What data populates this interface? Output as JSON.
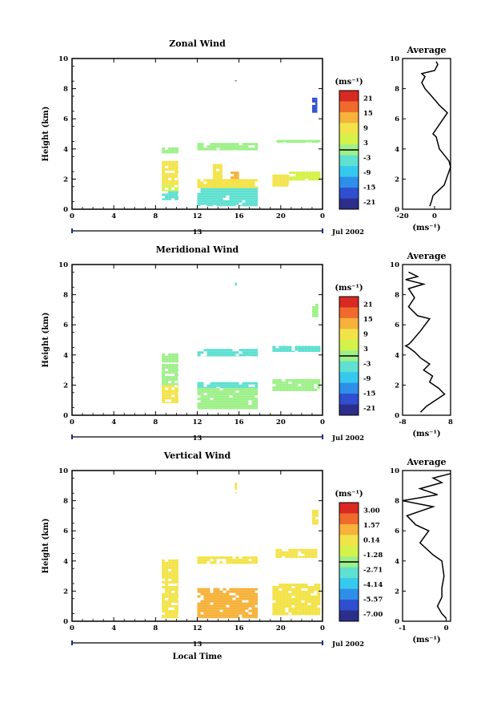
{
  "chart_data": [
    {
      "type": "heatmap",
      "title": "Zonal Wind",
      "ylabel": "Height (km)",
      "xlabel": "",
      "date_label": "Jul 2002",
      "date_day": "13",
      "x_ticks": [
        "0",
        "4",
        "8",
        "12",
        "16",
        "20",
        "0"
      ],
      "y_ticks": [
        "0",
        "2",
        "4",
        "6",
        "8",
        "10"
      ],
      "xlim": [
        0,
        24
      ],
      "ylim": [
        0,
        10
      ],
      "colorbar": {
        "unit": "(ms⁻¹)",
        "ticks": [
          "21",
          "15",
          "9",
          "3",
          "-3",
          "-9",
          "-15",
          "-21"
        ],
        "range": [
          -24,
          24
        ]
      },
      "blocks": [
        {
          "x": [
            8.6,
            10.2
          ],
          "y": [
            3.7,
            4.1
          ],
          "v": 2
        },
        {
          "x": [
            8.6,
            10.2
          ],
          "y": [
            1.6,
            3.2
          ],
          "v": 9
        },
        {
          "x": [
            8.6,
            10.2
          ],
          "y": [
            1.2,
            1.6
          ],
          "v": 6
        },
        {
          "x": [
            8.6,
            10.2
          ],
          "y": [
            0.6,
            1.2
          ],
          "v": -6
        },
        {
          "x": [
            12,
            17.8
          ],
          "y": [
            3.9,
            4.4
          ],
          "v": 1
        },
        {
          "x": [
            13.5,
            14.4
          ],
          "y": [
            1.4,
            3.0
          ],
          "v": 9
        },
        {
          "x": [
            15.2,
            16.0
          ],
          "y": [
            1.8,
            2.5
          ],
          "v": 12
        },
        {
          "x": [
            12,
            17.8
          ],
          "y": [
            1.4,
            2.0
          ],
          "v": 8
        },
        {
          "x": [
            12,
            17.8
          ],
          "y": [
            0.2,
            1.4
          ],
          "v": -6
        },
        {
          "x": [
            19.2,
            20.8
          ],
          "y": [
            1.5,
            2.3
          ],
          "v": 7
        },
        {
          "x": [
            20.8,
            23.8
          ],
          "y": [
            1.9,
            2.5
          ],
          "v": 4
        },
        {
          "x": [
            19.6,
            23.8
          ],
          "y": [
            4.4,
            4.6
          ],
          "v": 1
        },
        {
          "x": [
            23.0,
            23.5
          ],
          "y": [
            6.4,
            7.4
          ],
          "v": -18
        },
        {
          "x": [
            15.6,
            15.8
          ],
          "y": [
            8.5,
            8.7
          ],
          "v": -20
        }
      ],
      "average": {
        "xlim": [
          -20,
          10
        ],
        "x_ticks": [
          "-20",
          "0"
        ],
        "ylabel": "",
        "xlabel": "(ms⁻¹)",
        "title": "Average",
        "profile": [
          [
            -3,
            0.2
          ],
          [
            -2,
            0.5
          ],
          [
            -1,
            0.9
          ],
          [
            2,
            1.2
          ],
          [
            6,
            1.6
          ],
          [
            8,
            2.2
          ],
          [
            10,
            2.8
          ],
          [
            9,
            3.2
          ],
          [
            6,
            3.6
          ],
          [
            3,
            4.0
          ],
          [
            2,
            4.4
          ],
          [
            1,
            4.8
          ],
          [
            -1,
            5.0
          ],
          [
            8,
            6.4
          ],
          [
            3,
            6.9
          ],
          [
            -1,
            7.4
          ],
          [
            -6,
            8.0
          ],
          [
            -8,
            8.4
          ],
          [
            -6,
            8.8
          ],
          [
            -8,
            9.0
          ],
          [
            0,
            9.2
          ],
          [
            1,
            9.4
          ],
          [
            2,
            9.6
          ],
          [
            1,
            9.8
          ]
        ]
      }
    },
    {
      "type": "heatmap",
      "title": "Meridional Wind",
      "ylabel": "Height (km)",
      "xlabel": "",
      "date_label": "Jul 2002",
      "date_day": "13",
      "x_ticks": [
        "0",
        "4",
        "8",
        "12",
        "16",
        "20",
        "0"
      ],
      "y_ticks": [
        "0",
        "2",
        "4",
        "6",
        "8",
        "10"
      ],
      "xlim": [
        0,
        24
      ],
      "ylim": [
        0,
        10
      ],
      "colorbar": {
        "unit": "(ms⁻¹)",
        "ticks": [
          "21",
          "15",
          "9",
          "3",
          "-3",
          "-9",
          "-15",
          "-21"
        ],
        "range": [
          -24,
          24
        ]
      },
      "blocks": [
        {
          "x": [
            8.6,
            10.2
          ],
          "y": [
            3.5,
            4.1
          ],
          "v": 1
        },
        {
          "x": [
            8.6,
            10.2
          ],
          "y": [
            2.0,
            3.4
          ],
          "v": 0
        },
        {
          "x": [
            8.6,
            10.2
          ],
          "y": [
            0.8,
            2.0
          ],
          "v": 7
        },
        {
          "x": [
            12,
            17.8
          ],
          "y": [
            3.9,
            4.4
          ],
          "v": -5
        },
        {
          "x": [
            12,
            17.8
          ],
          "y": [
            1.8,
            2.2
          ],
          "v": -3
        },
        {
          "x": [
            12,
            17.8
          ],
          "y": [
            0.4,
            1.8
          ],
          "v": 1
        },
        {
          "x": [
            19.2,
            23.8
          ],
          "y": [
            1.6,
            2.4
          ],
          "v": -2
        },
        {
          "x": [
            19.2,
            23.8
          ],
          "y": [
            4.2,
            4.6
          ],
          "v": -6
        },
        {
          "x": [
            23.0,
            23.6
          ],
          "y": [
            6.5,
            7.4
          ],
          "v": 1
        },
        {
          "x": [
            15.6,
            15.8
          ],
          "y": [
            8.6,
            8.8
          ],
          "v": -6
        }
      ],
      "average": {
        "xlim": [
          -8,
          8
        ],
        "x_ticks": [
          "-8",
          "8"
        ],
        "ylabel": "",
        "xlabel": "(ms⁻¹)",
        "title": "Average",
        "profile": [
          [
            -2,
            0.2
          ],
          [
            0,
            0.6
          ],
          [
            3,
            1.0
          ],
          [
            6,
            1.4
          ],
          [
            4,
            1.8
          ],
          [
            1,
            2.2
          ],
          [
            2,
            2.6
          ],
          [
            -1,
            3.0
          ],
          [
            1,
            3.4
          ],
          [
            -2,
            3.8
          ],
          [
            -4,
            4.2
          ],
          [
            -6,
            4.5
          ],
          [
            -7,
            4.6
          ],
          [
            -6,
            4.7
          ],
          [
            -5,
            4.9
          ],
          [
            -2,
            5.6
          ],
          [
            1,
            6.4
          ],
          [
            -3,
            6.6
          ],
          [
            -6,
            7.2
          ],
          [
            -4,
            7.8
          ],
          [
            -6,
            8.4
          ],
          [
            -1,
            8.7
          ],
          [
            -7,
            9.0
          ],
          [
            -3,
            9.2
          ],
          [
            -6,
            9.5
          ]
        ]
      }
    },
    {
      "type": "heatmap",
      "title": "Vertical Wind",
      "ylabel": "Height (km)",
      "xlabel": "Local Time",
      "date_label": "Jul 2002",
      "date_day": "13",
      "x_ticks": [
        "0",
        "4",
        "8",
        "12",
        "16",
        "20",
        "0"
      ],
      "y_ticks": [
        "0",
        "2",
        "4",
        "6",
        "8",
        "10"
      ],
      "xlim": [
        0,
        24
      ],
      "ylim": [
        0,
        10
      ],
      "colorbar": {
        "unit": "(ms⁻¹)",
        "ticks": [
          "3.00",
          "1.57",
          "0.14",
          "-1.28",
          "-2.71",
          "-4.14",
          "-5.57",
          "-7.00"
        ],
        "range": [
          -8.0,
          4.0
        ]
      },
      "blocks": [
        {
          "x": [
            8.6,
            10.2
          ],
          "y": [
            0.2,
            4.1
          ],
          "v": 0.6
        },
        {
          "x": [
            12,
            17.8
          ],
          "y": [
            3.8,
            4.3
          ],
          "v": 0.6
        },
        {
          "x": [
            12,
            17.8
          ],
          "y": [
            0.2,
            2.2
          ],
          "v": 0.9
        },
        {
          "x": [
            19.2,
            23.8
          ],
          "y": [
            0.4,
            2.5
          ],
          "v": 0.5
        },
        {
          "x": [
            19.5,
            23.5
          ],
          "y": [
            4.2,
            4.8
          ],
          "v": 0.6
        },
        {
          "x": [
            23.0,
            23.6
          ],
          "y": [
            6.4,
            7.4
          ],
          "v": 0.4
        },
        {
          "x": [
            15.6,
            15.8
          ],
          "y": [
            8.5,
            9.2
          ],
          "v": 0.4
        }
      ],
      "average": {
        "xlim": [
          -1,
          0.1
        ],
        "x_ticks": [
          "-1",
          "0"
        ],
        "ylabel": "",
        "xlabel": "(ms⁻¹)",
        "title": "Average",
        "profile": [
          [
            0,
            0.2
          ],
          [
            -0.1,
            0.5
          ],
          [
            -0.2,
            1.0
          ],
          [
            -0.1,
            1.6
          ],
          [
            -0.1,
            2.2
          ],
          [
            -0.05,
            3.0
          ],
          [
            -0.1,
            4.0
          ],
          [
            -0.3,
            4.4
          ],
          [
            -0.6,
            5.2
          ],
          [
            -0.4,
            6.0
          ],
          [
            -0.7,
            6.4
          ],
          [
            -0.9,
            7.0
          ],
          [
            -0.3,
            7.6
          ],
          [
            -1.0,
            8.0
          ],
          [
            -0.2,
            8.4
          ],
          [
            -0.6,
            8.8
          ],
          [
            -0.1,
            9.2
          ],
          [
            -0.3,
            9.5
          ],
          [
            0.1,
            9.8
          ]
        ]
      }
    }
  ]
}
